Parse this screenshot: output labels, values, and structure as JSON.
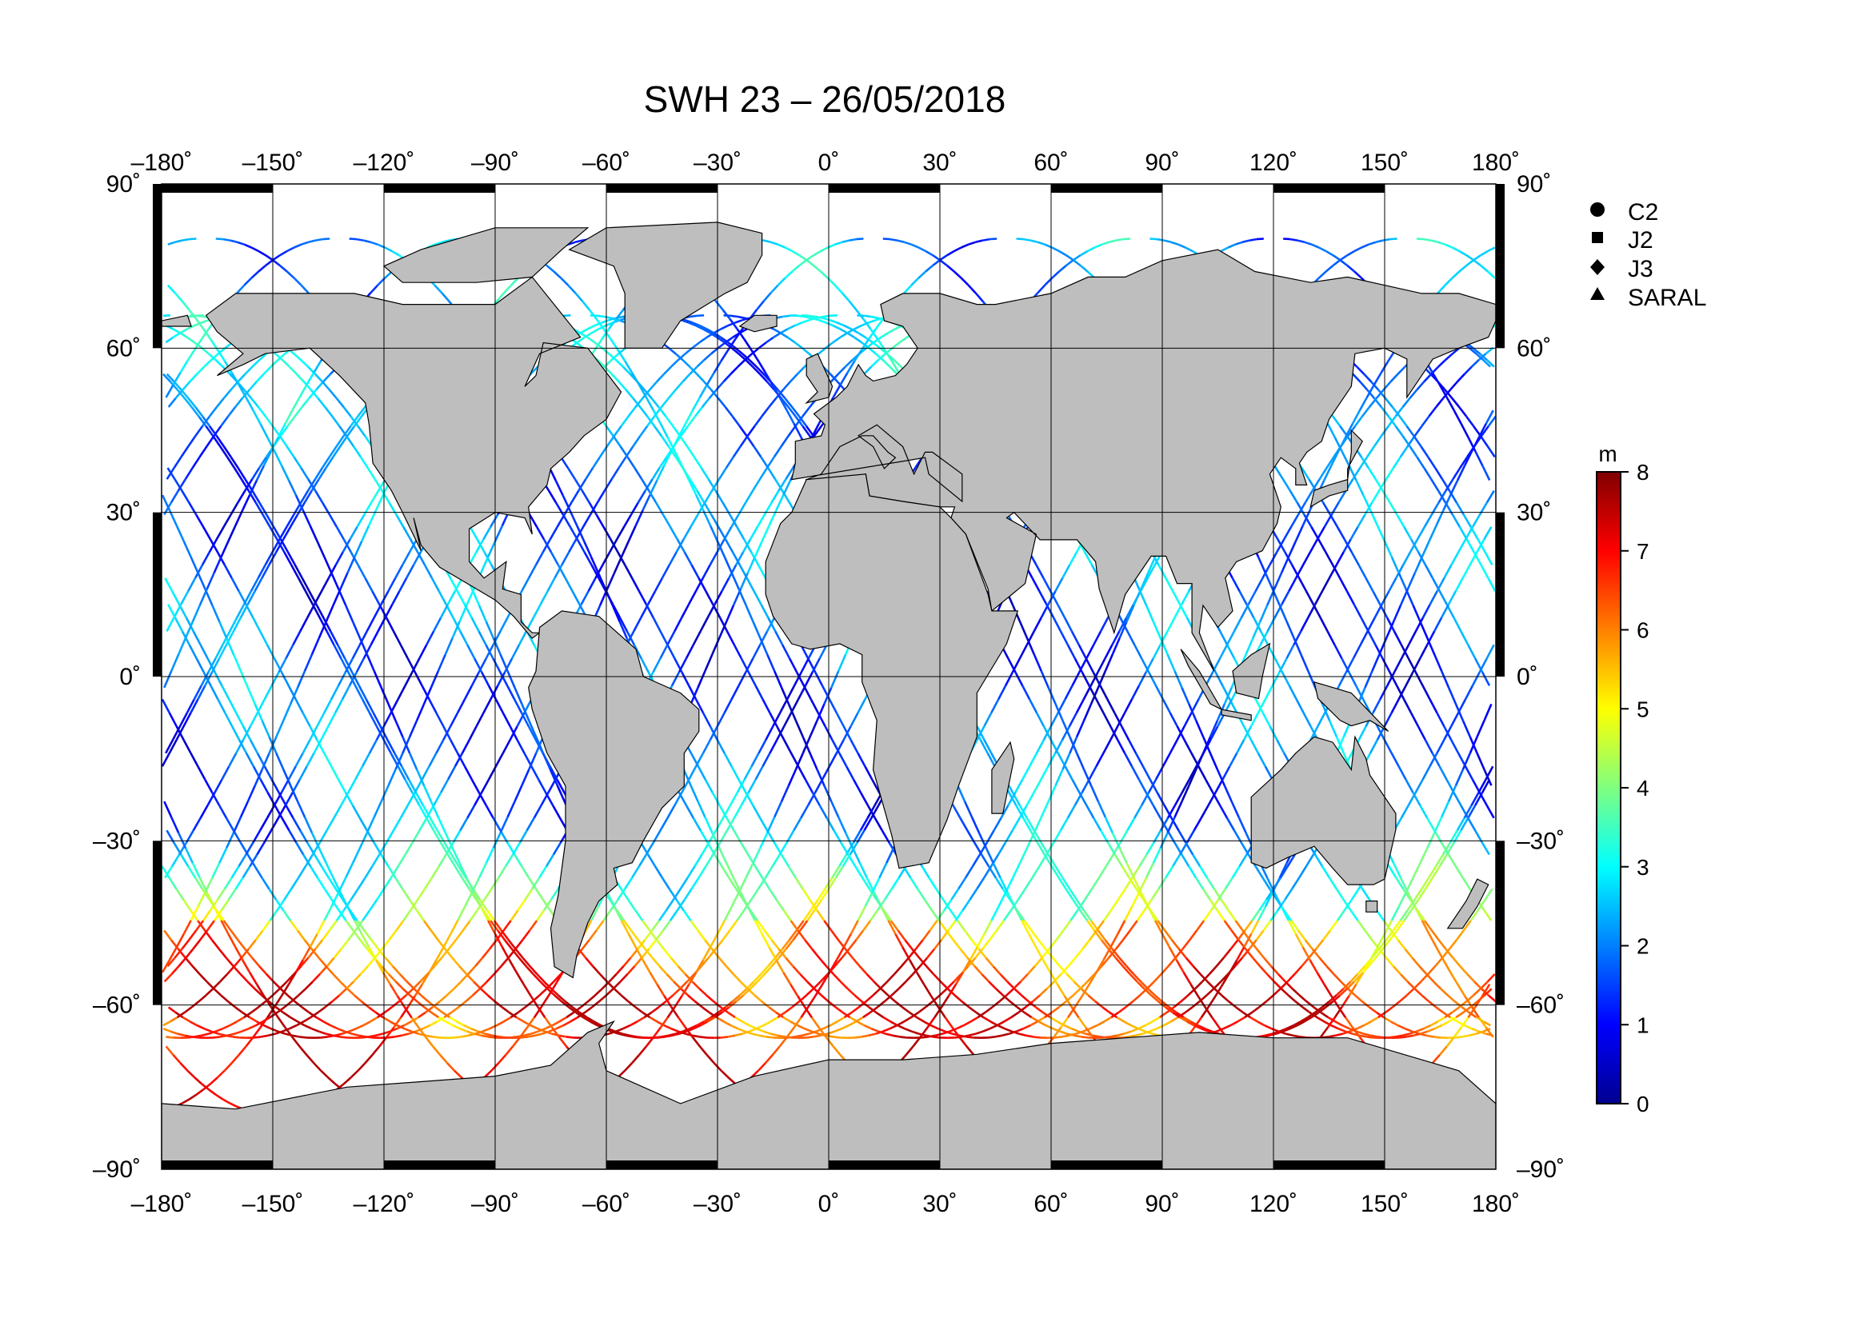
{
  "title": "SWH 23 – 26/05/2018",
  "map": {
    "lon_range": [
      -180,
      180
    ],
    "lat_range": [
      -90,
      90
    ],
    "lon_ticks": [
      "–180˚",
      "–150˚",
      "–120˚",
      "–90˚",
      "–60˚",
      "–30˚",
      "0˚",
      "30˚",
      "60˚",
      "90˚",
      "120˚",
      "150˚",
      "180˚"
    ],
    "lat_ticks": [
      "90˚",
      "60˚",
      "30˚",
      "0˚",
      "–30˚",
      "–60˚",
      "–90˚"
    ],
    "land_color": "#bebebe",
    "ocean_color": "#ffffff",
    "grid": true
  },
  "legend": {
    "items": [
      {
        "symbol": "circle",
        "label": "C2"
      },
      {
        "symbol": "square",
        "label": "J2"
      },
      {
        "symbol": "diamond",
        "label": "J3"
      },
      {
        "symbol": "triangle",
        "label": "SARAL"
      }
    ]
  },
  "colorbar": {
    "unit": "m",
    "min": 0,
    "max": 8,
    "ticks": [
      "0",
      "1",
      "2",
      "3",
      "4",
      "5",
      "6",
      "7",
      "8"
    ],
    "colormap": "jet"
  },
  "chart_data": {
    "type": "map",
    "variable": "SWH",
    "xlim": [
      -180,
      180
    ],
    "ylim": [
      -90,
      90
    ],
    "series": [
      {
        "name": "C2",
        "values": []
      },
      {
        "name": "J2",
        "values": []
      },
      {
        "name": "J3",
        "values": []
      },
      {
        "name": "SARAL",
        "values": []
      }
    ]
  }
}
